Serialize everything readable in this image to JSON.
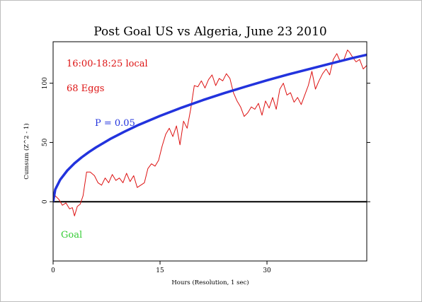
{
  "chart_data": {
    "type": "line",
    "title": "Post Goal US vs Algeria, June 23 2010",
    "xlabel": "Hours (Resolution, 1 sec)",
    "ylabel": "Cumsum (Z^2 - 1)",
    "xlim": [
      0,
      44
    ],
    "ylim": [
      -50,
      135
    ],
    "x_ticks": [
      0,
      15,
      30
    ],
    "y_ticks": [
      0,
      50,
      100
    ],
    "grid": false,
    "annotations": {
      "time_range": "16:00-18:25 local",
      "eggs": "68 Eggs",
      "p_label": "P = 0.05",
      "goal_label": "Goal"
    },
    "colors": {
      "cumsum": "#dd1111",
      "p_curve": "#2233dd",
      "goal": "#33cc33",
      "zero_line": "#000000"
    },
    "series": [
      {
        "key": "cumsum",
        "x": [
          0,
          0.3,
          0.8,
          1.3,
          1.8,
          2.3,
          2.7,
          3.0,
          3.4,
          3.8,
          4.2,
          4.7,
          5.2,
          5.8,
          6.3,
          6.8,
          7.3,
          7.8,
          8.3,
          8.8,
          9.3,
          9.8,
          10.3,
          10.8,
          11.3,
          11.8,
          12.3,
          12.8,
          13.3,
          13.8,
          14.3,
          14.8,
          15.3,
          15.8,
          16.3,
          16.8,
          17.3,
          17.8,
          18.3,
          18.8,
          19.3,
          19.8,
          20.3,
          20.8,
          21.3,
          21.8,
          22.3,
          22.8,
          23.3,
          23.8,
          24.3,
          24.8,
          25.3,
          25.8,
          26.3,
          26.8,
          27.3,
          27.8,
          28.3,
          28.8,
          29.3,
          29.8,
          30.3,
          30.8,
          31.3,
          31.8,
          32.3,
          32.8,
          33.3,
          33.8,
          34.3,
          34.8,
          35.3,
          35.8,
          36.3,
          36.8,
          37.3,
          37.8,
          38.3,
          38.8,
          39.3,
          39.8,
          40.3,
          40.8,
          41.3,
          41.6,
          42.0,
          42.5,
          43.0,
          43.5,
          44.0
        ],
        "y": [
          0,
          5,
          2,
          -3,
          -1,
          -6,
          -5,
          -12,
          -4,
          -2,
          5,
          25,
          25,
          22,
          16,
          14,
          20,
          16,
          23,
          18,
          20,
          16,
          24,
          17,
          22,
          12,
          14,
          16,
          28,
          32,
          30,
          35,
          47,
          57,
          62,
          55,
          64,
          48,
          68,
          62,
          78,
          98,
          97,
          102,
          96,
          103,
          107,
          98,
          104,
          102,
          108,
          104,
          92,
          85,
          80,
          72,
          75,
          80,
          78,
          83,
          73,
          85,
          79,
          88,
          78,
          95,
          100,
          90,
          92,
          84,
          88,
          82,
          90,
          98,
          110,
          95,
          102,
          108,
          112,
          107,
          120,
          125,
          118,
          120,
          128,
          126,
          122,
          118,
          120,
          112,
          115
        ]
      },
      {
        "key": "p_curve",
        "x": [
          0,
          0.3,
          1,
          2,
          3,
          4,
          5,
          6,
          8,
          10,
          12,
          15,
          18,
          21,
          24,
          27,
          30,
          33,
          36,
          39,
          42,
          44
        ],
        "y": [
          0,
          10.3,
          18.7,
          26.4,
          32.4,
          37.4,
          41.8,
          45.8,
          52.9,
          59.1,
          64.8,
          72.4,
          79.3,
          85.7,
          91.6,
          97.1,
          102.4,
          107.4,
          112.1,
          116.7,
          121.2,
          124.0
        ]
      }
    ]
  }
}
